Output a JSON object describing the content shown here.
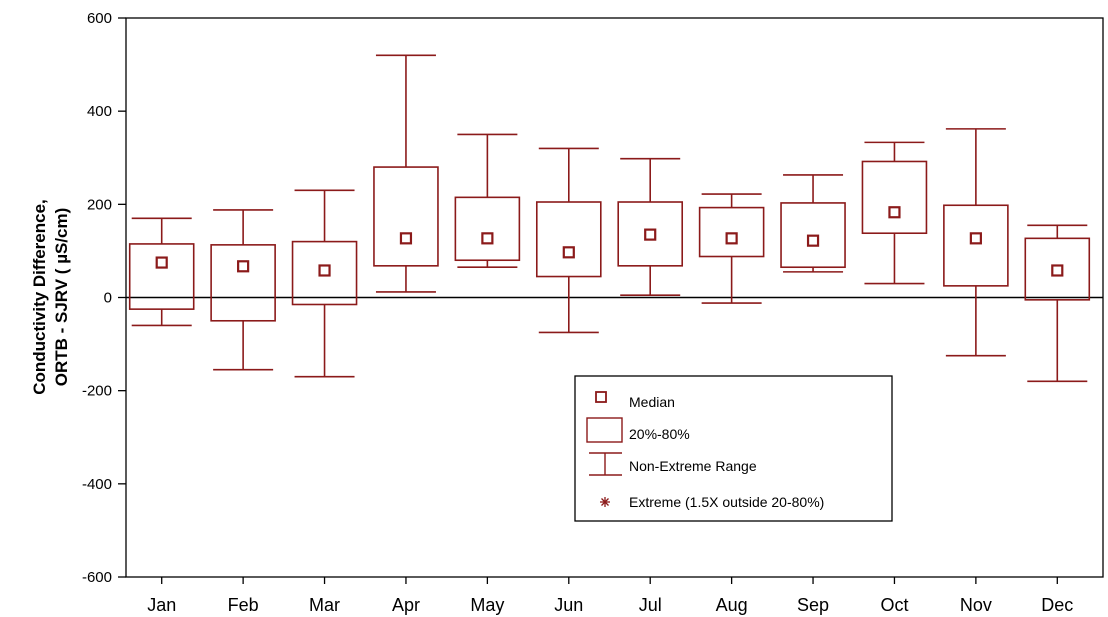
{
  "chart_data": {
    "type": "box",
    "ylabel_line1": "Conductivity Difference,",
    "ylabel_line2": "ORTB - SJRV ( µS/cm)",
    "ylim": [
      -600,
      600
    ],
    "yticks": [
      600,
      400,
      200,
      0,
      -200,
      -400,
      -600
    ],
    "grid": false,
    "zero_line": true,
    "categories": [
      "Jan",
      "Feb",
      "Mar",
      "Apr",
      "May",
      "Jun",
      "Jul",
      "Aug",
      "Sep",
      "Oct",
      "Nov",
      "Dec"
    ],
    "boxes": [
      {
        "min": -60,
        "q20": -25,
        "median": 75,
        "q80": 115,
        "max": 170
      },
      {
        "min": -155,
        "q20": -50,
        "median": 67,
        "q80": 113,
        "max": 188
      },
      {
        "min": -170,
        "q20": -15,
        "median": 58,
        "q80": 120,
        "max": 230
      },
      {
        "min": 12,
        "q20": 68,
        "median": 127,
        "q80": 280,
        "max": 520
      },
      {
        "min": 65,
        "q20": 80,
        "median": 127,
        "q80": 215,
        "max": 350
      },
      {
        "min": -75,
        "q20": 45,
        "median": 97,
        "q80": 205,
        "max": 320
      },
      {
        "min": 5,
        "q20": 68,
        "median": 135,
        "q80": 205,
        "max": 298
      },
      {
        "min": -12,
        "q20": 88,
        "median": 127,
        "q80": 193,
        "max": 222
      },
      {
        "min": 55,
        "q20": 65,
        "median": 122,
        "q80": 203,
        "max": 263
      },
      {
        "min": 30,
        "q20": 138,
        "median": 183,
        "q80": 292,
        "max": 333
      },
      {
        "min": -125,
        "q20": 25,
        "median": 127,
        "q80": 198,
        "max": 362
      },
      {
        "min": -180,
        "q20": -5,
        "median": 58,
        "q80": 127,
        "max": 155
      }
    ],
    "legend": {
      "placement": "center-bottom",
      "entries": [
        "Median",
        "20%-80%",
        "Non-Extreme Range",
        "Extreme (1.5X outside 20-80%)"
      ]
    },
    "colors": {
      "series": "#8b1a1a",
      "axis": "#000000"
    }
  }
}
